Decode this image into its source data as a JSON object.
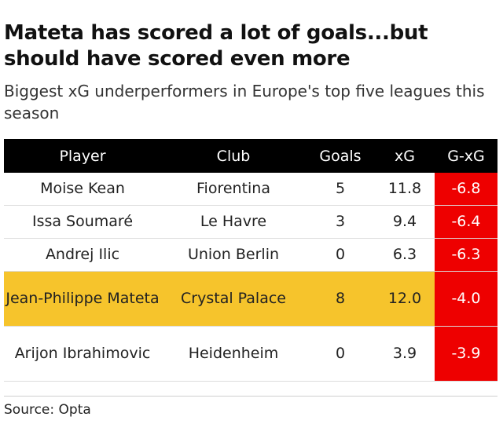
{
  "title": "Mateta has scored a lot of goals...but should have scored even more",
  "subtitle": "Biggest xG underperformers in Europe's top five leagues this season",
  "source": "Source: Opta",
  "colors": {
    "header_bg": "#000000",
    "highlight": "#f6c42c",
    "negative": "#ee0000"
  },
  "chart_data": {
    "type": "table",
    "title": "Mateta has scored a lot of goals...but should have scored even more",
    "subtitle": "Biggest xG underperformers in Europe's top five leagues this season",
    "columns": [
      "Player",
      "Club",
      "Goals",
      "xG",
      "G-xG"
    ],
    "rows": [
      {
        "player": "Moise Kean",
        "club": "Fiorentina",
        "goals": "5",
        "xg": "11.8",
        "gxg": "-6.8",
        "highlight": false
      },
      {
        "player": "Issa Soumaré",
        "club": "Le Havre",
        "goals": "3",
        "xg": "9.4",
        "gxg": "-6.4",
        "highlight": false
      },
      {
        "player": "Andrej Ilic",
        "club": "Union Berlin",
        "goals": "0",
        "xg": "6.3",
        "gxg": "-6.3",
        "highlight": false
      },
      {
        "player": "Jean-Philippe Mateta",
        "club": "Crystal Palace",
        "goals": "8",
        "xg": "12.0",
        "gxg": "-4.0",
        "highlight": true
      },
      {
        "player": "Arijon Ibrahimovic",
        "club": "Heidenheim",
        "goals": "0",
        "xg": "3.9",
        "gxg": "-3.9",
        "highlight": false
      }
    ]
  }
}
